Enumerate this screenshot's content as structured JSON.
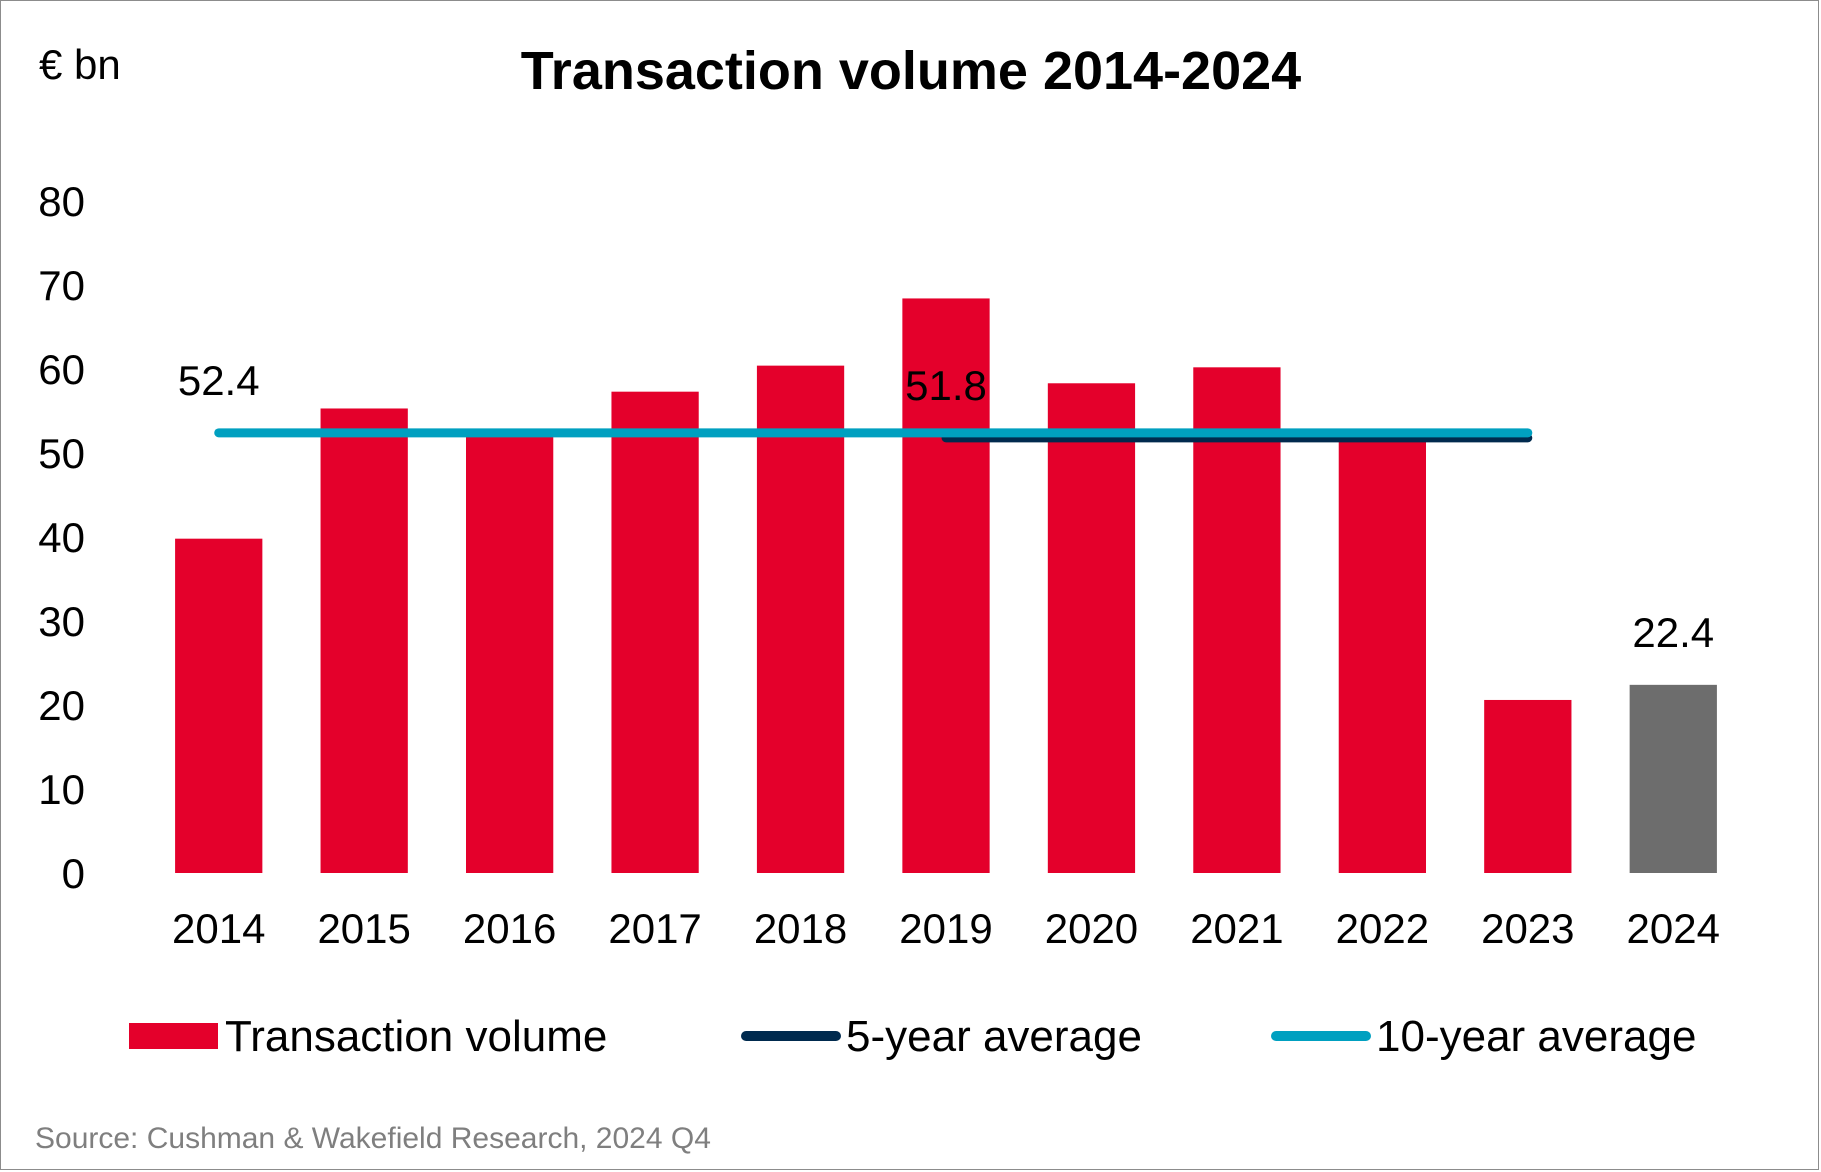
{
  "chart_data": {
    "type": "bar",
    "title": "Transaction volume 2014-2024",
    "unit_label": "€ bn",
    "categories": [
      "2014",
      "2015",
      "2016",
      "2017",
      "2018",
      "2019",
      "2020",
      "2021",
      "2022",
      "2023",
      "2024"
    ],
    "series": [
      {
        "name": "Transaction volume",
        "type": "bar",
        "values": [
          39.8,
          55.3,
          52.2,
          57.3,
          60.4,
          68.4,
          58.3,
          60.2,
          52.0,
          20.6,
          22.4
        ],
        "colors": [
          "#e4002b",
          "#e4002b",
          "#e4002b",
          "#e4002b",
          "#e4002b",
          "#e4002b",
          "#e4002b",
          "#e4002b",
          "#e4002b",
          "#e4002b",
          "#6d6d6d"
        ]
      },
      {
        "name": "5-year average",
        "type": "line",
        "value": 51.8,
        "from": "2019",
        "to": "2023",
        "color": "#002a4e"
      },
      {
        "name": "10-year average",
        "type": "line",
        "value": 52.4,
        "from": "2014",
        "to": "2023",
        "color": "#00a0c0"
      }
    ],
    "data_labels": [
      {
        "category": "2014",
        "text": "52.4",
        "anchor_value": 52.4
      },
      {
        "category": "2019",
        "text": "51.8",
        "anchor_value": 51.8
      },
      {
        "category": "2024",
        "text": "22.4",
        "anchor_value": 22.4
      }
    ],
    "ylim": [
      0,
      80
    ],
    "yticks": [
      0,
      10,
      20,
      30,
      40,
      50,
      60,
      70,
      80
    ],
    "grid": false,
    "legend_position": "bottom",
    "xlabel": "",
    "ylabel": ""
  },
  "legend": {
    "items": [
      "Transaction volume",
      "5-year average",
      "10-year average"
    ]
  },
  "source_note": "Source: Cushman & Wakefield Research, 2024 Q4"
}
